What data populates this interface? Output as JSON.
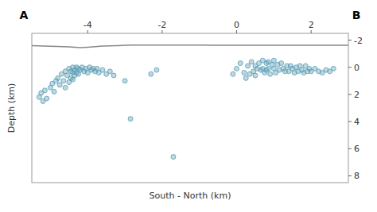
{
  "chart_data": {
    "type": "scatter",
    "title": "",
    "xlabel": "South - North (km)",
    "ylabel": "Depth (km)",
    "xlim": [
      -5.5,
      3.0
    ],
    "ylim": [
      8.5,
      -2.5
    ],
    "xticks": [
      -4,
      -2,
      0,
      2
    ],
    "yticks": [
      -2,
      0,
      2,
      4,
      6,
      8
    ],
    "grid": false,
    "annotations": [
      "A",
      "B"
    ],
    "series": [
      {
        "type": "line",
        "color": "#888888",
        "x": [
          -5.5,
          -5.0,
          -4.5,
          -4.2,
          -4.0,
          -3.8,
          -3.6,
          -3.4,
          -3.2,
          -3.0,
          -2.8,
          -2.5,
          -2.2,
          -2.0,
          -1.5,
          -1.0,
          -0.5,
          0.0,
          0.5,
          1.0,
          1.5,
          2.0,
          2.5,
          3.0
        ],
        "values": [
          -1.6,
          -1.55,
          -1.5,
          -1.45,
          -1.48,
          -1.52,
          -1.56,
          -1.58,
          -1.6,
          -1.62,
          -1.63,
          -1.63,
          -1.63,
          -1.63,
          -1.63,
          -1.63,
          -1.62,
          -1.62,
          -1.62,
          -1.62,
          -1.62,
          -1.62,
          -1.62,
          -1.62
        ]
      },
      {
        "type": "scatter",
        "color": "#5b9db5",
        "x": [
          -5.3,
          -5.25,
          -5.2,
          -5.15,
          -5.1,
          -5.0,
          -4.95,
          -4.9,
          -4.85,
          -4.8,
          -4.75,
          -4.7,
          -4.65,
          -4.6,
          -4.6,
          -4.55,
          -4.5,
          -4.5,
          -4.45,
          -4.45,
          -4.4,
          -4.4,
          -4.4,
          -4.35,
          -4.35,
          -4.3,
          -4.3,
          -4.25,
          -4.25,
          -4.2,
          -4.15,
          -4.1,
          -4.05,
          -4.0,
          -3.95,
          -3.9,
          -3.85,
          -3.8,
          -3.75,
          -3.7,
          -3.6,
          -3.5,
          -3.4,
          -3.3,
          -3.0,
          -2.85,
          -2.3,
          -2.15,
          -1.7,
          -0.1,
          0.0,
          0.1,
          0.2,
          0.25,
          0.3,
          0.35,
          0.4,
          0.45,
          0.5,
          0.5,
          0.55,
          0.6,
          0.65,
          0.7,
          0.7,
          0.75,
          0.8,
          0.8,
          0.85,
          0.85,
          0.9,
          0.95,
          1.0,
          1.0,
          1.05,
          1.1,
          1.15,
          1.2,
          1.25,
          1.3,
          1.35,
          1.4,
          1.45,
          1.5,
          1.55,
          1.6,
          1.65,
          1.7,
          1.75,
          1.8,
          1.85,
          1.9,
          1.95,
          2.0,
          2.1,
          2.2,
          2.3,
          2.4,
          2.5,
          2.6
        ],
        "values": [
          2.2,
          1.9,
          2.5,
          1.7,
          2.3,
          1.5,
          1.2,
          1.8,
          1.0,
          0.8,
          1.3,
          0.5,
          1.0,
          0.3,
          1.5,
          0.6,
          0.1,
          1.1,
          0.3,
          0.8,
          0.0,
          0.4,
          0.9,
          0.2,
          0.6,
          0.0,
          0.4,
          0.1,
          0.5,
          0.2,
          0.0,
          0.3,
          0.1,
          0.4,
          0.0,
          0.2,
          0.1,
          0.3,
          0.1,
          0.4,
          0.2,
          0.5,
          0.3,
          0.6,
          1.0,
          3.8,
          0.5,
          0.2,
          6.6,
          0.5,
          0.1,
          -0.3,
          0.4,
          0.8,
          -0.1,
          0.5,
          -0.4,
          0.3,
          -0.1,
          0.6,
          0.1,
          -0.3,
          0.2,
          -0.5,
          0.1,
          0.4,
          -0.3,
          0.2,
          -0.4,
          0.1,
          0.5,
          -0.2,
          -0.5,
          0.1,
          0.4,
          -0.2,
          0.2,
          -0.3,
          0.1,
          0.3,
          -0.1,
          0.3,
          -0.1,
          0.1,
          0.4,
          0.0,
          0.3,
          -0.1,
          0.2,
          0.4,
          -0.1,
          0.3,
          0.1,
          0.3,
          0.1,
          0.3,
          0.4,
          0.2,
          0.3,
          0.1
        ]
      }
    ]
  }
}
